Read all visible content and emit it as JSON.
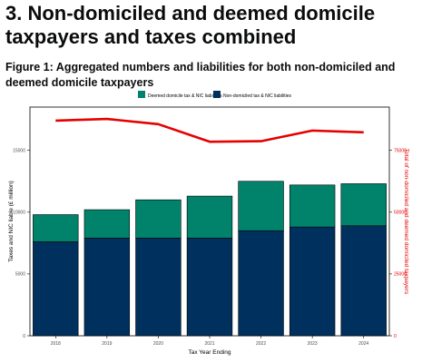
{
  "page": {
    "section_title": "3. Non-domiciled and deemed domicile taxpayers and taxes combined",
    "figure_caption": "Figure 1: Aggregated numbers and liabilities for both non-domiciled and deemed domicile taxpayers"
  },
  "chart_data": {
    "type": "bar",
    "stacked": true,
    "categories": [
      "2018",
      "2019",
      "2020",
      "2021",
      "2022",
      "2023",
      "2024"
    ],
    "xlabel": "Tax Year Ending",
    "ylabel": "Taxes and NIC liable (£ million)",
    "y2label": "Total of non-domiciled and deemed domiciled taxpayers",
    "ylim": [
      0,
      18500
    ],
    "yticks": [
      0,
      5000,
      10000,
      15000
    ],
    "y2lim": [
      0,
      92500
    ],
    "y2ticks": [
      0,
      25000,
      50000,
      75000
    ],
    "legend_position": "top",
    "grid": false,
    "series": [
      {
        "name": "Deemed domicile tax & NIC liabilities",
        "color": "#00826b",
        "values": [
          2200,
          2300,
          3100,
          3400,
          4000,
          3400,
          3400
        ]
      },
      {
        "name": "Non-domiciled tax & NIC liabilities",
        "color": "#00305e",
        "values": [
          7600,
          7900,
          7900,
          7900,
          8500,
          8800,
          8900
        ]
      }
    ],
    "line_series": {
      "name": "Total of non-domiciled and deemed domiciled taxpayers",
      "color": "#e60000",
      "axis": "right",
      "values": [
        87000,
        87700,
        85600,
        78500,
        78700,
        83000,
        82300
      ]
    }
  }
}
